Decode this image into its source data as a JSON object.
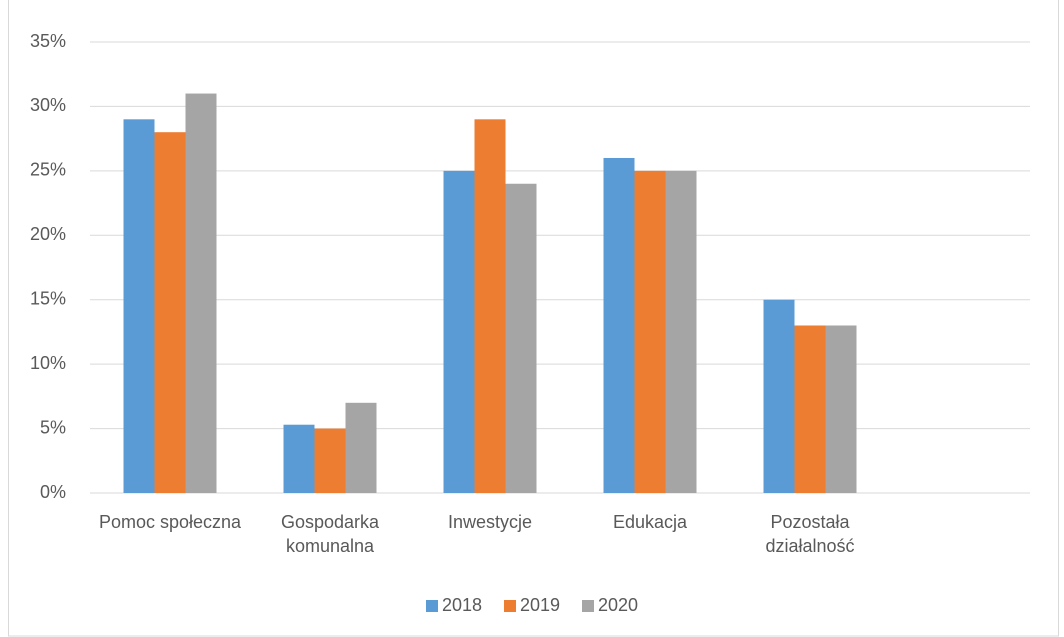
{
  "chart_data": {
    "type": "bar",
    "categories": [
      "Pomoc społeczna",
      "Gospodarka komunalna",
      "Inwestycje",
      "Edukacja",
      "Pozostała działalność",
      null
    ],
    "series": [
      {
        "name": "2018",
        "color": "#5b9bd5",
        "values": [
          29,
          5.3,
          25,
          26,
          15,
          null
        ]
      },
      {
        "name": "2019",
        "color": "#ed7d31",
        "values": [
          28,
          5,
          29,
          25,
          13,
          null
        ]
      },
      {
        "name": "2020",
        "color": "#a5a5a5",
        "values": [
          31,
          7,
          24,
          25,
          13,
          null
        ]
      }
    ],
    "ylim": [
      0,
      35
    ],
    "yticks": [
      {
        "value": 0,
        "label": "0%"
      },
      {
        "value": 5,
        "label": "5%"
      },
      {
        "value": 10,
        "label": "10%"
      },
      {
        "value": 15,
        "label": "15%"
      },
      {
        "value": 20,
        "label": "20%"
      },
      {
        "value": 25,
        "label": "25%"
      },
      {
        "value": 30,
        "label": "30%"
      },
      {
        "value": 35,
        "label": "35%"
      }
    ],
    "grid": true,
    "legend": "bottom"
  }
}
